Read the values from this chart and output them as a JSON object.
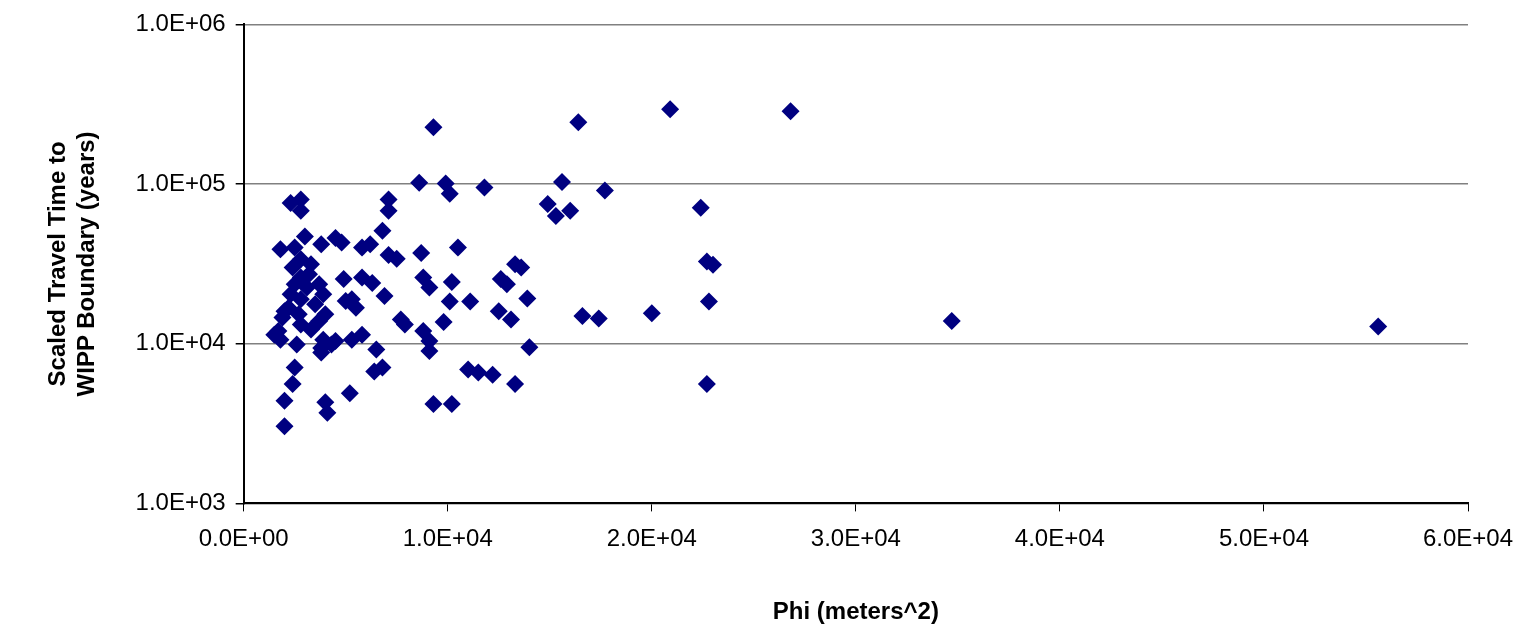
{
  "chart_data": {
    "type": "scatter",
    "xlabel": "Phi (meters^2)",
    "ylabel": "Scaled Travel Time to WIPP Boundary (years)",
    "log": "y",
    "grid": "y",
    "legend": false,
    "marker": "diamond",
    "xlim": [
      0,
      60000
    ],
    "ylim": [
      1000,
      1000000
    ],
    "xticks": [
      {
        "value": 0,
        "label": "0.0E+00"
      },
      {
        "value": 10000,
        "label": "1.0E+04"
      },
      {
        "value": 20000,
        "label": "2.0E+04"
      },
      {
        "value": 30000,
        "label": "3.0E+04"
      },
      {
        "value": 40000,
        "label": "4.0E+04"
      },
      {
        "value": 50000,
        "label": "5.0E+04"
      },
      {
        "value": 60000,
        "label": "6.0E+04"
      }
    ],
    "yticks": [
      {
        "value": 1000,
        "label": "1.0E+03"
      },
      {
        "value": 10000,
        "label": "1.0E+04"
      },
      {
        "value": 100000,
        "label": "1.0E+05"
      },
      {
        "value": 1000000,
        "label": "1.0E+06"
      }
    ],
    "series": [
      {
        "color": "#000080",
        "x": [
          9300,
          16400,
          20900,
          26800,
          9900,
          15600,
          17700,
          11800,
          10100,
          8600,
          14900,
          15300,
          16000,
          22400,
          8700,
          10500,
          8800,
          9100,
          10200,
          10100,
          11100,
          9800,
          8800,
          9100,
          9100,
          12600,
          13300,
          13600,
          12900,
          13900,
          12500,
          13100,
          16600,
          17400,
          20000,
          22700,
          23000,
          22800,
          22700,
          14000,
          11000,
          11500,
          12200,
          13300,
          9300,
          10200,
          2300,
          2800,
          2800,
          7100,
          7100,
          6800,
          3000,
          1800,
          2500,
          3800,
          4500,
          4800,
          5800,
          6200,
          7100,
          7500,
          4900,
          5800,
          6300,
          6900,
          7700,
          7900,
          5500,
          5000,
          6500,
          6800,
          6400,
          5800,
          5300,
          4500,
          3800,
          3800,
          4300,
          3900,
          2600,
          1800,
          1700,
          1900,
          2000,
          2500,
          2400,
          2000,
          2000,
          4000,
          4100,
          5200,
          2800,
          3300,
          2400,
          2800,
          3200,
          2500,
          3100,
          3700,
          3900,
          2300,
          2800,
          3500,
          2200,
          2700,
          4000,
          3700,
          2800,
          3300,
          1500,
          5300,
          34700,
          55600
        ],
        "values": [
          227000,
          244000,
          294000,
          286000,
          101000,
          103000,
          91000,
          95000,
          87000,
          102000,
          75000,
          63000,
          68000,
          71000,
          37000,
          40000,
          26000,
          22500,
          24400,
          18400,
          18400,
          13700,
          12000,
          10400,
          9000,
          25400,
          31500,
          30000,
          23600,
          19200,
          16000,
          14200,
          14900,
          14400,
          15500,
          32700,
          31200,
          18400,
          5600,
          9500,
          6900,
          6600,
          6400,
          5600,
          4200,
          4200,
          76000,
          80000,
          68000,
          80000,
          68000,
          51000,
          47000,
          39000,
          40000,
          42000,
          46000,
          43000,
          40000,
          42000,
          36000,
          34000,
          25400,
          26000,
          24000,
          19900,
          14200,
          13200,
          16800,
          18500,
          9200,
          7100,
          6700,
          11400,
          10600,
          10400,
          9400,
          8800,
          9900,
          10600,
          9900,
          10600,
          12000,
          14600,
          16000,
          7100,
          5600,
          4400,
          3040,
          4300,
          3700,
          4900,
          33800,
          31500,
          30000,
          26000,
          27200,
          23600,
          22500,
          23600,
          20400,
          20400,
          19000,
          17700,
          16800,
          15300,
          15300,
          13900,
          13200,
          12300,
          11400,
          19000,
          13900,
          12800
        ]
      }
    ]
  }
}
